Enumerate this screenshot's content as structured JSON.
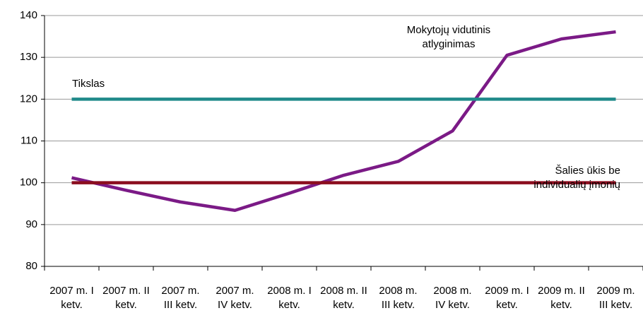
{
  "chart_data": {
    "type": "line",
    "categories": [
      "2007 m. I ketv.",
      "2007 m. II ketv.",
      "2007 m. III ketv.",
      "2007 m. IV ketv.",
      "2008 m. I ketv.",
      "2008 m. II ketv.",
      "2008 m. III ketv.",
      "2008 m. IV ketv.",
      "2009 m. I ketv.",
      "2009 m. II ketv.",
      "2009 m. III ketv."
    ],
    "series": [
      {
        "name": "Mokytojų vidutinis atlyginimas",
        "color": "#7b1a86",
        "values": [
          101.2,
          98.2,
          95.4,
          93.4,
          97.5,
          101.8,
          105.1,
          112.4,
          130.5,
          134.4,
          136.1
        ]
      },
      {
        "name": "Tikslas",
        "color": "#1f8a8a",
        "values": [
          120,
          120,
          120,
          120,
          120,
          120,
          120,
          120,
          120,
          120,
          120
        ]
      },
      {
        "name": "Šalies ūkis be individualių įmonių",
        "color": "#8b0d1e",
        "values": [
          100,
          100,
          100,
          100,
          100,
          100,
          100,
          100,
          100,
          100,
          100
        ]
      }
    ],
    "ylim": [
      80,
      140
    ],
    "yticks": [
      80,
      90,
      100,
      110,
      120,
      130,
      140
    ],
    "grid": true
  }
}
